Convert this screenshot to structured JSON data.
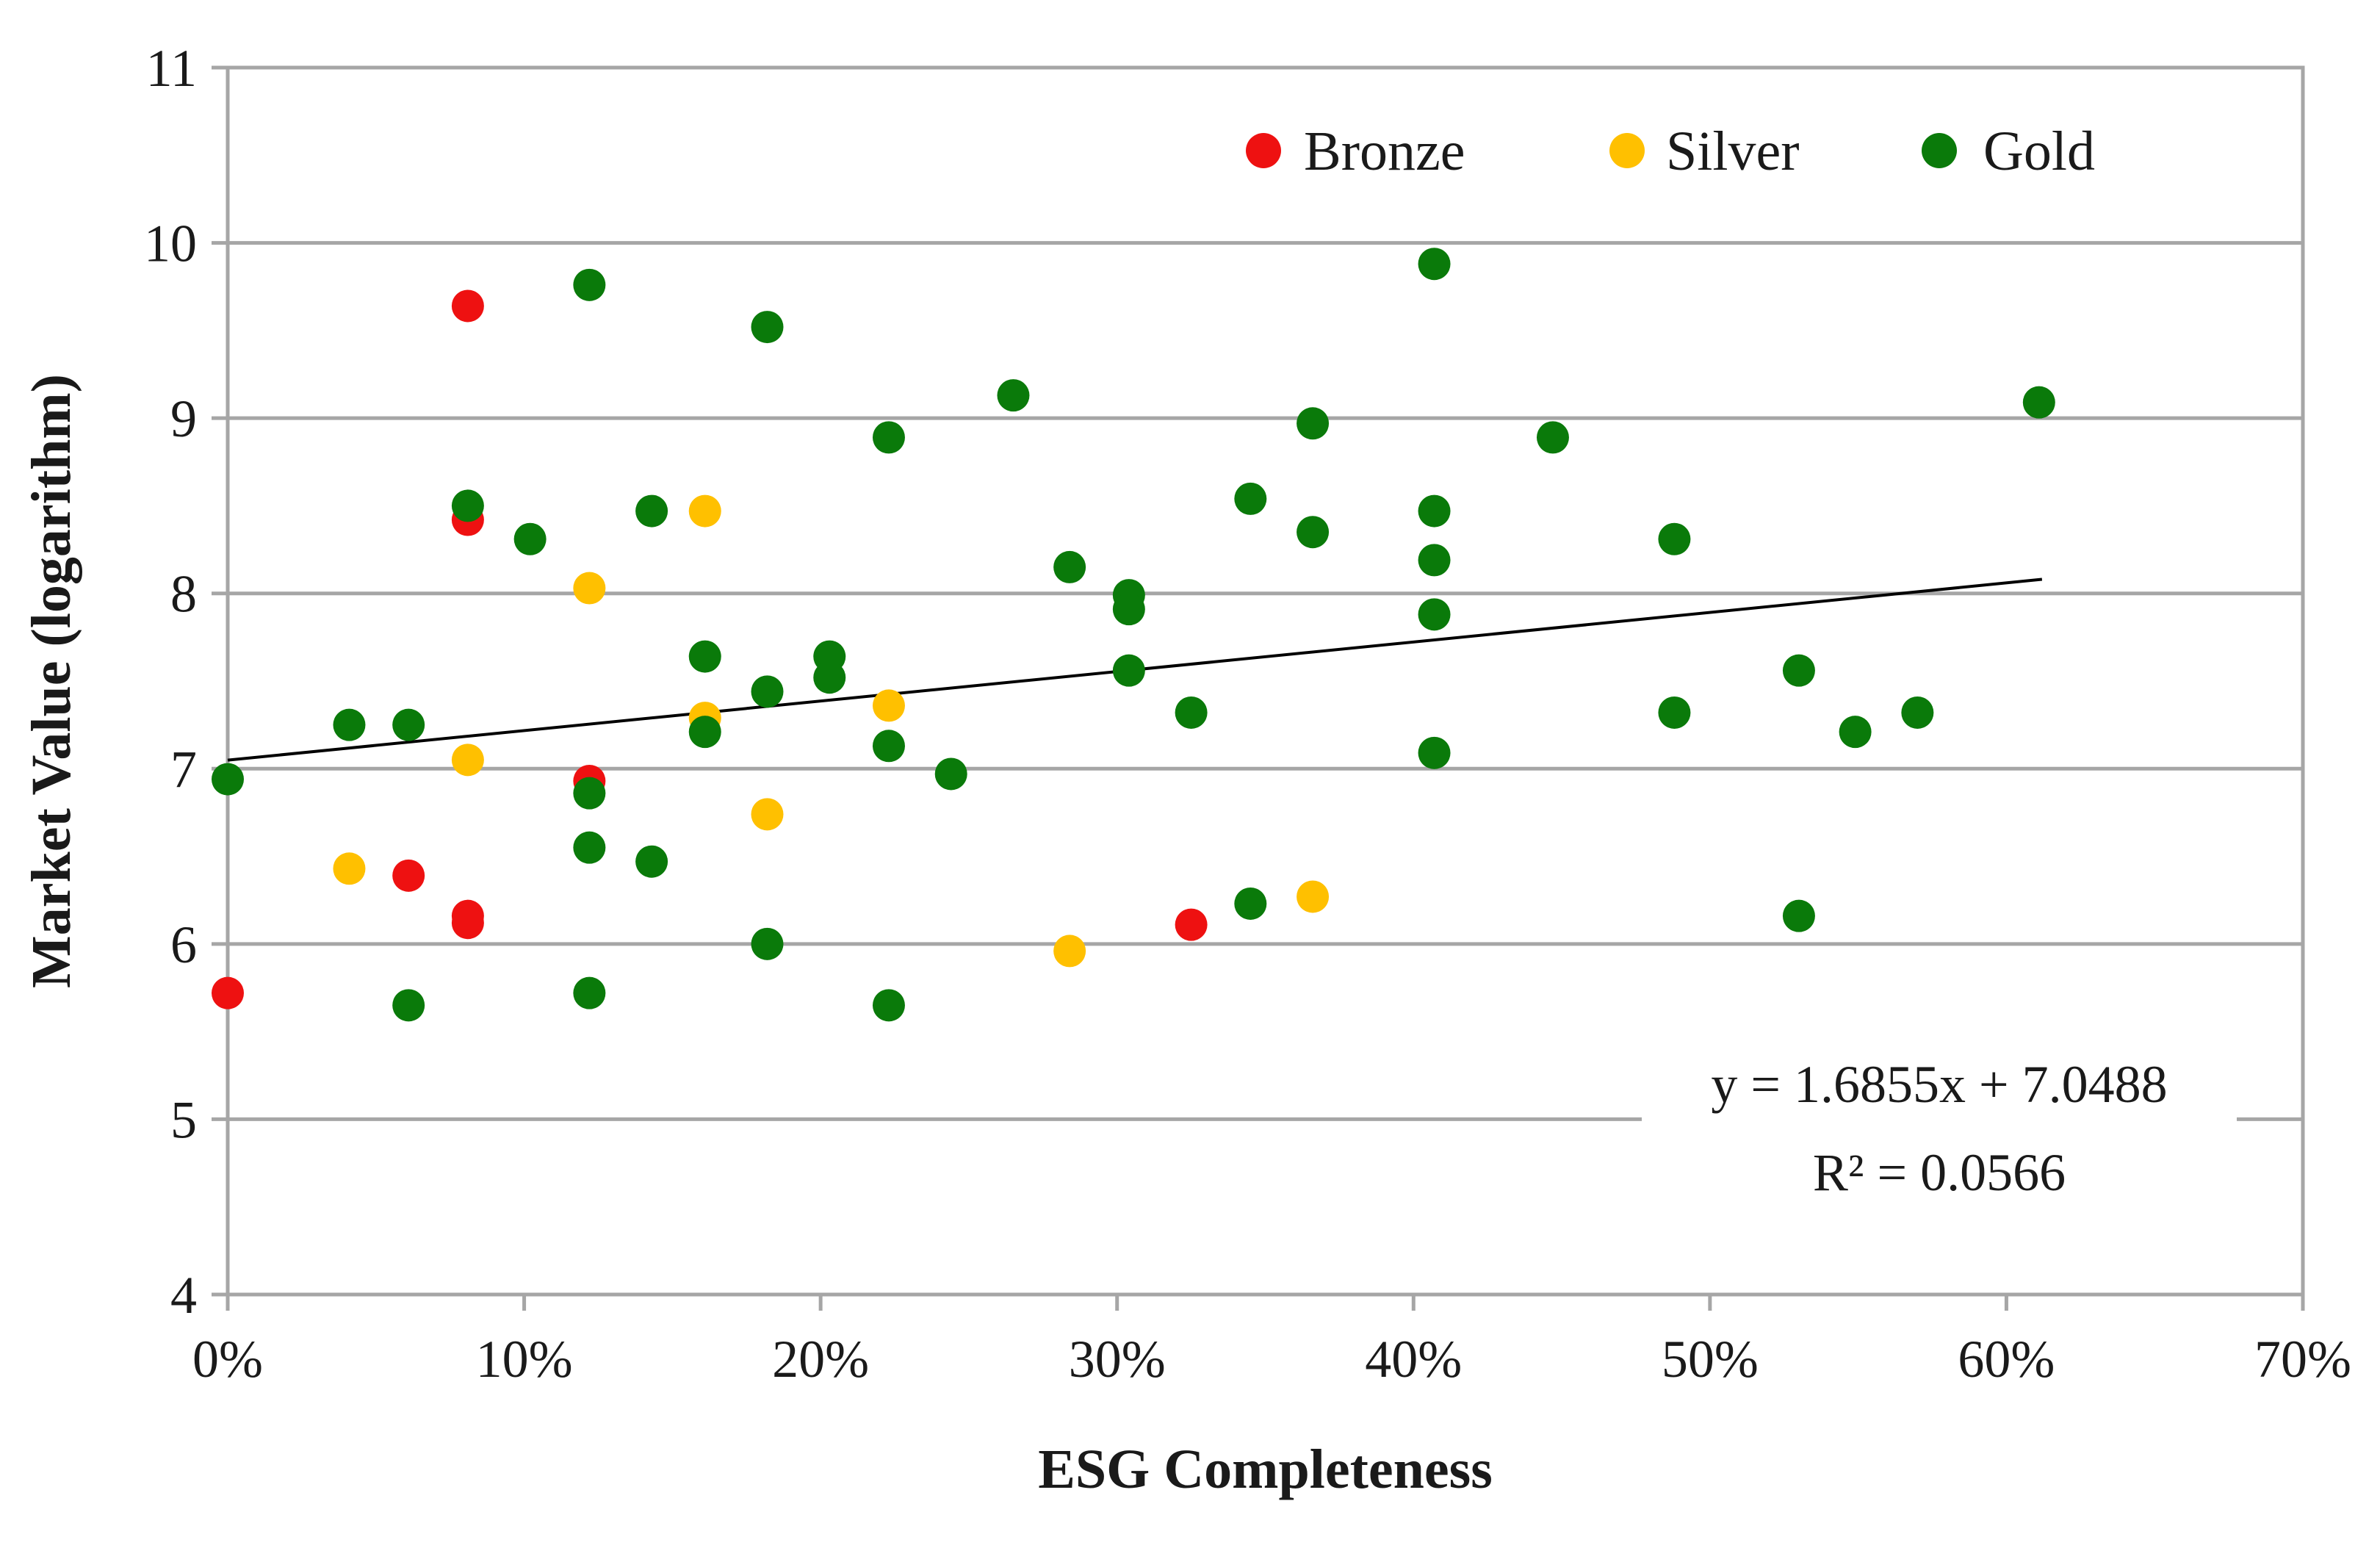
{
  "chart_data": {
    "type": "scatter",
    "title": "",
    "xlabel": "ESG Completeness",
    "ylabel": "Market Value (logarithm)",
    "xlim": [
      0,
      0.7
    ],
    "ylim": [
      4,
      11
    ],
    "x_ticks": [
      0,
      0.1,
      0.2,
      0.3,
      0.4,
      0.5,
      0.6,
      0.7
    ],
    "x_tick_labels": [
      "0%",
      "10%",
      "20%",
      "30%",
      "40%",
      "50%",
      "60%",
      "70%"
    ],
    "y_ticks": [
      4,
      5,
      6,
      7,
      8,
      9,
      10,
      11
    ],
    "y_tick_labels": [
      "4",
      "5",
      "6",
      "7",
      "8",
      "9",
      "10",
      "11"
    ],
    "grid": true,
    "legend_position": "top-right",
    "series": [
      {
        "name": "Bronze",
        "color": "#ee1111",
        "points": [
          [
            0.0,
            5.72
          ],
          [
            0.061,
            6.39
          ],
          [
            0.081,
            9.64
          ],
          [
            0.081,
            8.42
          ],
          [
            0.081,
            6.16
          ],
          [
            0.081,
            6.12
          ],
          [
            0.122,
            6.93
          ],
          [
            0.325,
            6.11
          ]
        ]
      },
      {
        "name": "Silver",
        "color": "#ffc000",
        "points": [
          [
            0.041,
            6.43
          ],
          [
            0.081,
            7.05
          ],
          [
            0.122,
            8.03
          ],
          [
            0.161,
            8.47
          ],
          [
            0.161,
            7.29
          ],
          [
            0.182,
            6.74
          ],
          [
            0.223,
            7.36
          ],
          [
            0.284,
            5.96
          ],
          [
            0.366,
            6.27
          ]
        ]
      },
      {
        "name": "Gold",
        "color": "#0a7a0a",
        "points": [
          [
            0.0,
            6.94
          ],
          [
            0.041,
            7.25
          ],
          [
            0.061,
            7.25
          ],
          [
            0.061,
            5.65
          ],
          [
            0.081,
            8.5
          ],
          [
            0.102,
            8.31
          ],
          [
            0.122,
            9.76
          ],
          [
            0.122,
            6.86
          ],
          [
            0.122,
            6.55
          ],
          [
            0.122,
            5.72
          ],
          [
            0.143,
            8.47
          ],
          [
            0.143,
            6.47
          ],
          [
            0.161,
            7.64
          ],
          [
            0.161,
            7.21
          ],
          [
            0.182,
            9.52
          ],
          [
            0.182,
            7.44
          ],
          [
            0.182,
            6.0
          ],
          [
            0.203,
            7.64
          ],
          [
            0.203,
            7.52
          ],
          [
            0.223,
            8.89
          ],
          [
            0.223,
            7.13
          ],
          [
            0.223,
            5.65
          ],
          [
            0.244,
            6.97
          ],
          [
            0.265,
            9.13
          ],
          [
            0.284,
            8.15
          ],
          [
            0.304,
            7.99
          ],
          [
            0.304,
            7.91
          ],
          [
            0.304,
            7.56
          ],
          [
            0.325,
            7.32
          ],
          [
            0.345,
            8.54
          ],
          [
            0.345,
            6.23
          ],
          [
            0.366,
            8.97
          ],
          [
            0.366,
            8.35
          ],
          [
            0.407,
            9.88
          ],
          [
            0.407,
            8.47
          ],
          [
            0.407,
            8.19
          ],
          [
            0.407,
            7.88
          ],
          [
            0.407,
            7.09
          ],
          [
            0.447,
            8.89
          ],
          [
            0.488,
            8.31
          ],
          [
            0.488,
            7.32
          ],
          [
            0.53,
            7.56
          ],
          [
            0.53,
            6.16
          ],
          [
            0.549,
            7.21
          ],
          [
            0.57,
            7.32
          ],
          [
            0.611,
            9.09
          ]
        ]
      }
    ],
    "trendline": {
      "slope": 1.6855,
      "intercept": 7.0488,
      "x_range": [
        0,
        0.612
      ],
      "color": "#000000",
      "equation_label": "y = 1.6855x + 7.0488",
      "r2_label": "R² = 0.0566"
    }
  },
  "colors": {
    "grid": "#a6a6a6",
    "axis": "#a6a6a6",
    "plot_border": "#a6a6a6"
  }
}
